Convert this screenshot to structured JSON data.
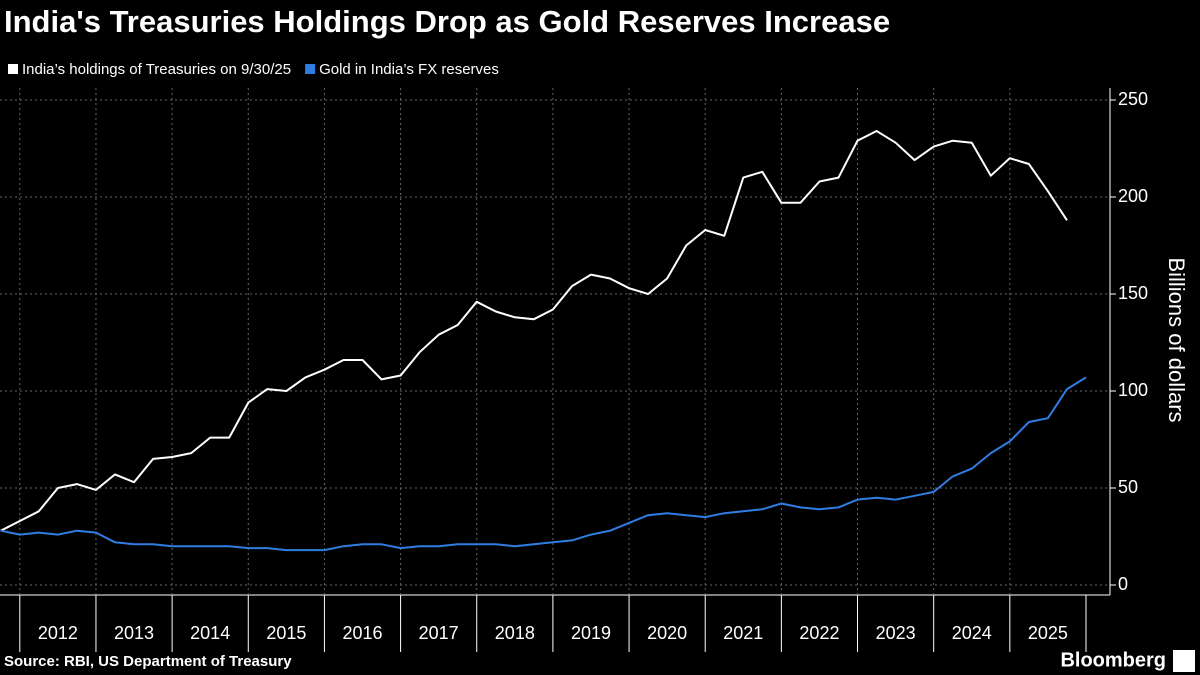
{
  "chart_data": {
    "type": "line",
    "title": "India's Treasuries Holdings Drop as Gold Reserves Increase",
    "y_label": "Billions of dollars",
    "source": "Source: RBI, US Department of Treasury",
    "brand": "Bloomberg",
    "x": [
      2011.75,
      2012,
      2012.25,
      2012.5,
      2012.75,
      2013,
      2013.25,
      2013.5,
      2013.75,
      2014,
      2014.25,
      2014.5,
      2014.75,
      2015,
      2015.25,
      2015.5,
      2015.75,
      2016,
      2016.25,
      2016.5,
      2016.75,
      2017,
      2017.25,
      2017.5,
      2017.75,
      2018,
      2018.25,
      2018.5,
      2018.75,
      2019,
      2019.25,
      2019.5,
      2019.75,
      2020,
      2020.25,
      2020.5,
      2020.75,
      2021,
      2021.25,
      2021.5,
      2021.75,
      2022,
      2022.25,
      2022.5,
      2022.75,
      2023,
      2023.25,
      2023.5,
      2023.75,
      2024,
      2024.25,
      2024.5,
      2024.75,
      2025,
      2025.25,
      2025.5,
      2025.75,
      2026
    ],
    "xlim": [
      2011.74,
      2026.0
    ],
    "xticks": [
      2012,
      2013,
      2014,
      2015,
      2016,
      2017,
      2018,
      2019,
      2020,
      2021,
      2022,
      2023,
      2024,
      2025
    ],
    "ylim": [
      0,
      250
    ],
    "yticks": [
      0,
      50,
      100,
      150,
      200,
      250
    ],
    "grid": true,
    "series": [
      {
        "name": "India’s holdings of Treasuries on 9/30/25",
        "color": "#ffffff",
        "values": [
          28,
          33,
          38,
          50,
          52,
          49,
          57,
          53,
          65,
          66,
          68,
          76,
          76,
          94,
          101,
          100,
          107,
          111,
          116,
          116,
          106,
          108,
          120,
          129,
          134,
          146,
          141,
          138,
          137,
          142,
          154,
          160,
          158,
          153,
          150,
          158,
          175,
          183,
          180,
          210,
          213,
          197,
          197,
          208,
          210,
          229,
          234,
          228,
          219,
          226,
          229,
          228,
          211,
          220,
          217,
          203,
          188,
          null
        ]
      },
      {
        "name": "Gold in India’s FX reserves",
        "color": "#2f7de1",
        "values": [
          28,
          26,
          27,
          26,
          28,
          27,
          22,
          21,
          21,
          20,
          20,
          20,
          20,
          19,
          19,
          18,
          18,
          18,
          20,
          21,
          21,
          19,
          20,
          20,
          21,
          21,
          21,
          20,
          21,
          22,
          23,
          26,
          28,
          32,
          36,
          37,
          36,
          35,
          37,
          38,
          39,
          42,
          40,
          39,
          40,
          44,
          45,
          44,
          46,
          48,
          56,
          60,
          68,
          74,
          84,
          86,
          101,
          107
        ]
      }
    ]
  }
}
